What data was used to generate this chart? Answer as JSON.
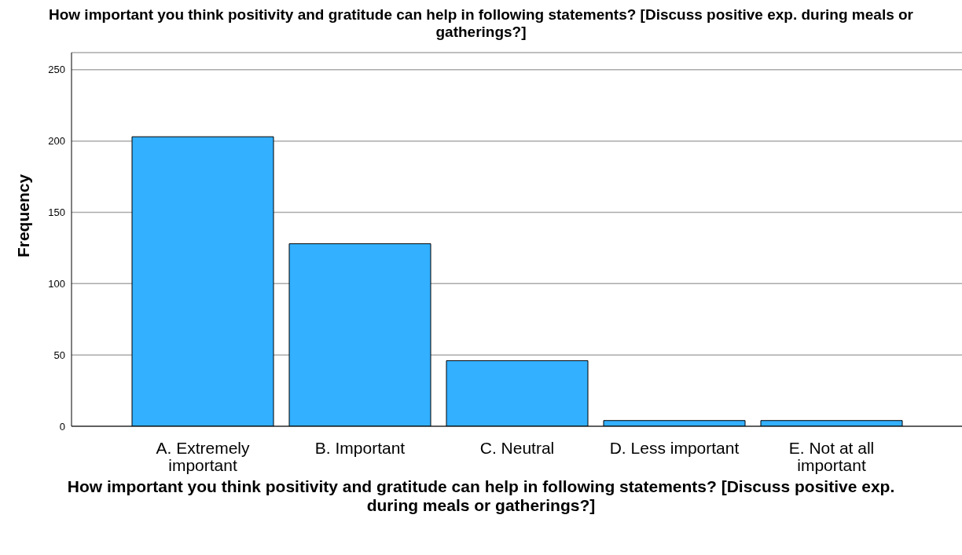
{
  "chart_data": {
    "type": "bar",
    "title": "How important you think positivity and gratitude can help in following statements? [Discuss positive exp. during meals or gatherings?]",
    "xlabel": "How important you think positivity and gratitude can help in following statements? [Discuss positive exp. during meals or gatherings?]",
    "ylabel": "Frequency",
    "categories": [
      "A. Extremely important",
      "B. Important",
      "C. Neutral",
      "D. Less important",
      "E. Not at all important"
    ],
    "values": [
      203,
      128,
      46,
      4,
      4
    ],
    "color": "#33b0ff",
    "ylim": [
      0,
      262
    ],
    "yticks": [
      0,
      50,
      100,
      150,
      200,
      250
    ],
    "grid": "y"
  }
}
